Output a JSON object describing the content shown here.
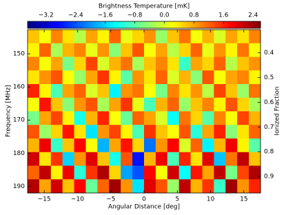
{
  "chart_data": {
    "type": "heatmap",
    "colormap": "jet",
    "colorbar_label": "Brightness Temperature [mK]",
    "clim": [
      -3.7,
      2.6
    ],
    "cticks": [
      {
        "value": -3.2,
        "label": "−3.2"
      },
      {
        "value": -2.4,
        "label": "−2.4"
      },
      {
        "value": -1.6,
        "label": "−1.6"
      },
      {
        "value": -0.8,
        "label": "−0.8"
      },
      {
        "value": 0,
        "label": "0.0"
      },
      0.8,
      1.6,
      2.4
    ],
    "xlabel": "Angular Distance [deg]",
    "ylabel": "Frequency [MHz]",
    "y2label": "Ionized Fraction",
    "xlim": [
      -17.5,
      17.5
    ],
    "xticks": [
      {
        "value": -15,
        "label": "−15"
      },
      {
        "value": -10,
        "label": "−10"
      },
      {
        "value": -5,
        "label": "−5"
      },
      0,
      5,
      10,
      15
    ],
    "ylim": [
      192,
      142.7
    ],
    "yticks": [
      150,
      160,
      170,
      180,
      190
    ],
    "y2lim": [
      0.967,
      0.306
    ],
    "y2ticks": [
      0.4,
      0.5,
      0.6,
      0.7,
      0.8,
      0.9
    ],
    "z": [
      [
        0.6,
        0.2,
        1.0,
        0.4,
        -0.2,
        0.8,
        0.3,
        1.2,
        0.1,
        0.5,
        0.9,
        -0.4,
        0.6,
        1.1,
        0.2,
        0.7,
        0.0,
        0.8,
        0.4,
        1.0
      ],
      [
        0.3,
        1.2,
        -0.3,
        0.7,
        1.0,
        0.1,
        0.9,
        -0.5,
        0.6,
        1.3,
        0.2,
        0.8,
        -0.2,
        0.5,
        1.2,
        0.1,
        0.9,
        0.3,
        1.1,
        0.2
      ],
      [
        1.0,
        0.2,
        0.8,
        -0.6,
        0.5,
        1.4,
        0.0,
        0.7,
        1.1,
        -0.3,
        0.6,
        1.0,
        0.4,
        -1.0,
        0.8,
        0.5,
        1.2,
        -0.2,
        0.6,
        0.9
      ],
      [
        0.4,
        0.9,
        1.3,
        0.2,
        -0.4,
        0.8,
        1.5,
        0.3,
        -0.8,
        0.9,
        0.4,
        1.2,
        0.0,
        0.7,
        -0.5,
        1.3,
        0.2,
        0.8,
        1.0,
        0.3
      ],
      [
        1.6,
        0.3,
        -0.9,
        0.8,
        1.2,
        0.0,
        0.6,
        -1.4,
        0.9,
        1.1,
        0.2,
        -0.6,
        1.0,
        0.4,
        0.9,
        -0.2,
        1.4,
        0.6,
        -0.4,
        1.1
      ],
      [
        0.2,
        1.7,
        0.6,
        -0.5,
        0.9,
        1.3,
        -0.3,
        0.8,
        1.5,
        0.1,
        -0.9,
        0.7,
        1.2,
        -0.4,
        0.6,
        1.0,
        0.3,
        1.3,
        0.5,
        -0.3
      ],
      [
        -0.6,
        0.8,
        1.4,
        0.3,
        -1.2,
        0.7,
        1.6,
        0.2,
        -0.7,
        1.2,
        0.8,
        0.0,
        -1.3,
        1.1,
        0.5,
        -0.8,
        1.0,
        0.2,
        1.4,
        0.7
      ],
      [
        1.3,
        -0.4,
        0.5,
        1.7,
        0.4,
        -1.5,
        0.9,
        1.4,
        0.3,
        -0.9,
        1.5,
        0.6,
        0.2,
        1.3,
        -1.1,
        0.8,
        1.6,
        -0.5,
        0.4,
        1.2
      ],
      [
        0.7,
        1.9,
        -1.0,
        0.6,
        1.8,
        0.2,
        -1.8,
        0.8,
        1.7,
        0.5,
        -2.2,
        0.9,
        1.8,
        0.0,
        1.2,
        -1.4,
        0.7,
        1.9,
        0.3,
        -0.8
      ],
      [
        2.1,
        0.4,
        1.5,
        -1.6,
        0.9,
        2.0,
        0.6,
        -1.2,
        1.3,
        -2.8,
        0.7,
        1.9,
        -0.9,
        1.6,
        0.4,
        2.0,
        -1.7,
        1.1,
        2.2,
        0.6
      ],
      [
        1.2,
        2.2,
        0.3,
        1.9,
        -1.1,
        1.5,
        2.3,
        0.5,
        -1.9,
        -2.4,
        1.8,
        0.2,
        2.1,
        -1.3,
        1.7,
        0.8,
        2.2,
        -0.6,
        1.4,
        2.3
      ],
      [
        2.3,
        0.8,
        2.1,
        0.6,
        1.8,
        -0.7,
        1.2,
        2.4,
        0.9,
        -1.5,
        2.0,
        1.3,
        -0.4,
        2.2,
        0.7,
        1.5,
        -1.0,
        2.4,
        0.9,
        1.6
      ]
    ]
  }
}
